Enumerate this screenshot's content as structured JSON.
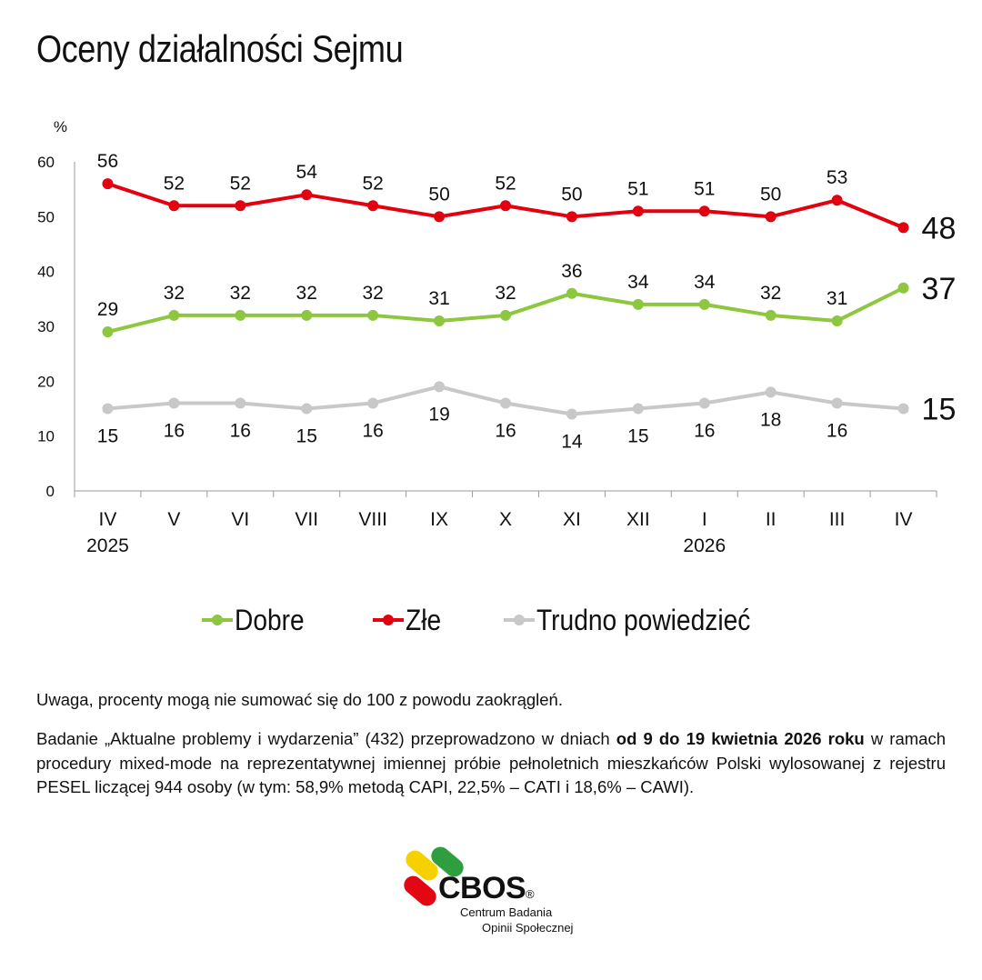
{
  "title": "Oceny działalności Sejmu",
  "chart_data": {
    "type": "line",
    "title": "Oceny działalności Sejmu",
    "ylabel": "%",
    "ylim": [
      0,
      60
    ],
    "yticks": [
      0,
      10,
      20,
      30,
      40,
      50,
      60
    ],
    "categories": [
      "IV",
      "V",
      "VI",
      "VII",
      "VIII",
      "IX",
      "X",
      "XI",
      "XII",
      "I",
      "II",
      "III",
      "IV"
    ],
    "year_labels": [
      {
        "index": 0,
        "text": "2025"
      },
      {
        "index": 9,
        "text": "2026"
      }
    ],
    "series": [
      {
        "name": "Dobre",
        "color": "#8dc63f",
        "values": [
          29,
          32,
          32,
          32,
          32,
          31,
          32,
          36,
          34,
          34,
          32,
          31,
          37
        ]
      },
      {
        "name": "Złe",
        "color": "#e3000f",
        "values": [
          56,
          52,
          52,
          54,
          52,
          50,
          52,
          50,
          51,
          51,
          50,
          53,
          48
        ]
      },
      {
        "name": "Trudno powiedzieć",
        "color": "#c8c8c8",
        "values": [
          15,
          16,
          16,
          15,
          16,
          19,
          16,
          14,
          15,
          16,
          18,
          16,
          15
        ]
      }
    ],
    "grid": false,
    "legend": "bottom"
  },
  "legend": {
    "items": [
      {
        "label": "Dobre",
        "color": "#8dc63f"
      },
      {
        "label": "Złe",
        "color": "#e3000f"
      },
      {
        "label": "Trudno powiedzieć",
        "color": "#c8c8c8"
      }
    ]
  },
  "notes": {
    "note": "Uwaga, procenty mogą nie sumować się do 100 z powodu zaokrągleń.",
    "method_pre": "Badanie „Aktualne problemy i wydarzenia” (432) przeprowadzono w dniach ",
    "method_bold": "od 9 do 19 kwietnia 2026 roku",
    "method_post": " w ramach procedury mixed-mode na reprezentatywnej imiennej próbie pełnoletnich mieszkańców Polski wylosowanej z rejestru PESEL liczącej 944 osoby (w tym: 58,9% metodą CAPI, 22,5% – CATI i 18,6% – CAWI)."
  },
  "logo": {
    "name": "CBOS",
    "registered": "®",
    "subtitle_line1": "Centrum Badania",
    "subtitle_line2": "Opinii Społecznej",
    "colors": [
      "#f5d100",
      "#2e9e3e",
      "#e30613"
    ]
  }
}
